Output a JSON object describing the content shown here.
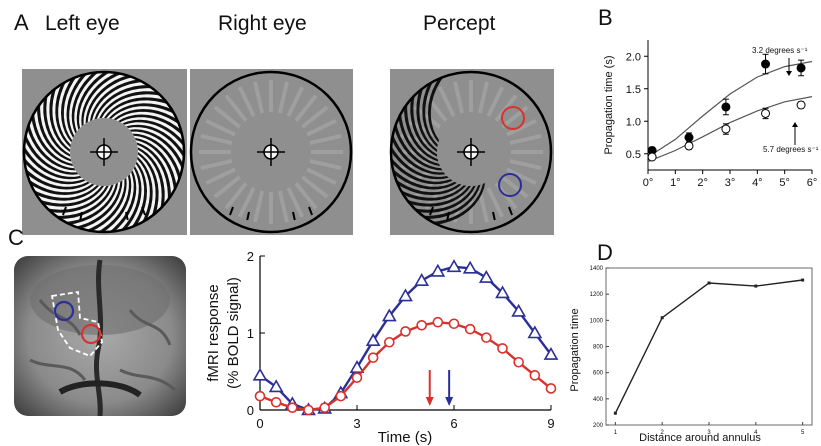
{
  "panels": {
    "a": {
      "letter": "A",
      "titles": [
        "Left eye",
        "Right eye",
        "Percept"
      ]
    },
    "b": {
      "letter": "B"
    },
    "c": {
      "letter": "C"
    },
    "d": {
      "letter": "D"
    }
  },
  "colors": {
    "gray_bg": "#8f8f8f",
    "red": "#d9322d",
    "blue": "#2b2f96",
    "marker": "#111111"
  },
  "chart_data": [
    {
      "id": "B",
      "type": "scatter",
      "ylabel": "Propagation time (s)",
      "xlabel": "",
      "xticks": [
        "0°",
        "1°",
        "2°",
        "3°",
        "4°",
        "5°",
        "6°"
      ],
      "yticks": [
        "0.5",
        "1.0",
        "1.5",
        "2.0"
      ],
      "xlim": [
        0,
        6
      ],
      "ylim": [
        0.25,
        2.25
      ],
      "series": [
        {
          "name": "3.2 degrees s⁻¹",
          "marker": "filled",
          "x": [
            0.15,
            1.5,
            2.85,
            4.3,
            5.6
          ],
          "y": [
            0.55,
            0.75,
            1.22,
            1.88,
            1.82
          ],
          "err": [
            0.05,
            0.07,
            0.12,
            0.15,
            0.12
          ]
        },
        {
          "name": "5.7 degrees s⁻¹",
          "marker": "open",
          "x": [
            0.15,
            1.5,
            2.85,
            4.3,
            5.6
          ],
          "y": [
            0.45,
            0.62,
            0.88,
            1.12,
            1.25
          ],
          "err": [
            0.04,
            0.05,
            0.08,
            0.08,
            0.05
          ]
        }
      ],
      "fit_lines": [
        {
          "x": [
            0,
            1,
            2,
            3,
            4,
            5,
            6
          ],
          "y": [
            0.45,
            0.72,
            1.08,
            1.42,
            1.68,
            1.84,
            1.92
          ]
        },
        {
          "x": [
            0,
            1,
            2,
            3,
            4,
            5,
            6
          ],
          "y": [
            0.38,
            0.55,
            0.76,
            0.98,
            1.16,
            1.3,
            1.38
          ]
        }
      ],
      "annotations": [
        "3.2 degrees s⁻¹",
        "5.7 degrees s⁻¹"
      ]
    },
    {
      "id": "C",
      "type": "line",
      "ylabel": "fMRI response",
      "ylabel2": "(% BOLD signal)",
      "xlabel": "Time (s)",
      "xticks": [
        "0",
        "3",
        "6",
        "9"
      ],
      "yticks": [
        "0",
        "1",
        "2"
      ],
      "xlim": [
        0,
        9
      ],
      "ylim": [
        0,
        2
      ],
      "series": [
        {
          "name": "blue",
          "marker": "triangle",
          "x": [
            0,
            0.5,
            1,
            1.5,
            2,
            2.5,
            3,
            3.5,
            4,
            4.5,
            5,
            5.5,
            6,
            6.5,
            7,
            7.5,
            8,
            8.5,
            9
          ],
          "y": [
            0.45,
            0.3,
            0.08,
            0.0,
            0.02,
            0.22,
            0.55,
            0.9,
            1.22,
            1.48,
            1.68,
            1.8,
            1.86,
            1.84,
            1.72,
            1.52,
            1.28,
            1.0,
            0.72
          ]
        },
        {
          "name": "red",
          "marker": "circle",
          "x": [
            0,
            0.5,
            1,
            1.5,
            2,
            2.5,
            3,
            3.5,
            4,
            4.5,
            5,
            5.5,
            6,
            6.5,
            7,
            7.5,
            8,
            8.5,
            9
          ],
          "y": [
            0.18,
            0.1,
            0.03,
            0.0,
            0.03,
            0.18,
            0.42,
            0.68,
            0.88,
            1.02,
            1.1,
            1.14,
            1.12,
            1.05,
            0.94,
            0.8,
            0.62,
            0.45,
            0.28
          ]
        }
      ],
      "arrows": [
        {
          "color": "red",
          "x": 5.25
        },
        {
          "color": "blue",
          "x": 5.85
        }
      ]
    },
    {
      "id": "D",
      "type": "line",
      "ylabel": "Propagation time",
      "xlabel": "Distance around annulus",
      "xticks": [
        "1",
        "2",
        "3",
        "4",
        "5"
      ],
      "yticks": [
        "200",
        "400",
        "600",
        "800",
        "1000",
        "1200",
        "1400"
      ],
      "xlim": [
        0.8,
        5.2
      ],
      "ylim": [
        200,
        1400
      ],
      "series": [
        {
          "name": "",
          "x": [
            1,
            2,
            3,
            4,
            5
          ],
          "y": [
            290,
            1020,
            1285,
            1262,
            1308
          ]
        }
      ]
    }
  ]
}
